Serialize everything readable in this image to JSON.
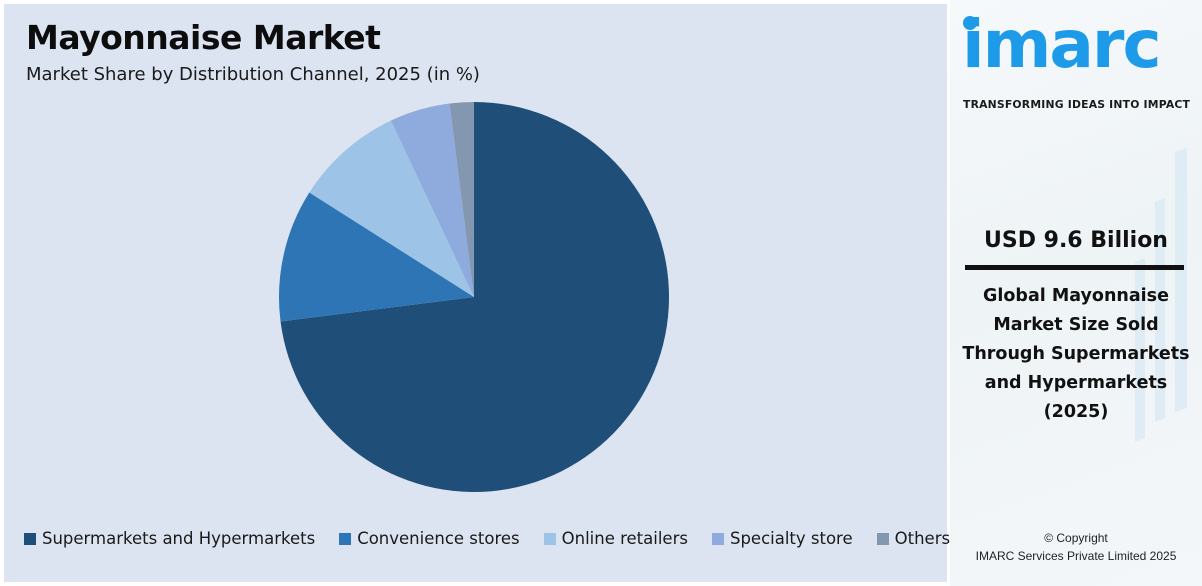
{
  "header": {
    "title": "Mayonnaise Market",
    "subtitle": "Market Share by Distribution Channel, 2025 (in %)"
  },
  "chart_data": {
    "type": "pie",
    "title": "Mayonnaise Market",
    "subtitle": "Market Share by Distribution Channel, 2025 (in %)",
    "categories": [
      "Supermarkets and Hypermarkets",
      "Convenience stores",
      "Online retailers",
      "Specialty store",
      "Others"
    ],
    "values": [
      73,
      11,
      9,
      5,
      2
    ],
    "colors": [
      "#1f4e79",
      "#2e75b6",
      "#9dc3e6",
      "#8faadc",
      "#8497b0"
    ],
    "start_angle": "12 o'clock, clockwise",
    "legend_position": "bottom"
  },
  "legend": {
    "items": [
      {
        "label": "Supermarkets and Hypermarkets",
        "color": "#1f4e79"
      },
      {
        "label": "Convenience stores",
        "color": "#2e75b6"
      },
      {
        "label": "Online retailers",
        "color": "#9dc3e6"
      },
      {
        "label": "Specialty store",
        "color": "#8faadc"
      },
      {
        "label": "Others",
        "color": "#8497b0"
      }
    ]
  },
  "sidebar": {
    "logo_text": "imarc",
    "tagline": "TRANSFORMING IDEAS INTO IMPACT",
    "brand_color": "#1e9be8",
    "value": "USD 9.6 Billion",
    "description_lines": [
      "Global Mayonnaise",
      "Market Size Sold",
      "Through Supermarkets",
      "and Hypermarkets",
      "(2025)"
    ],
    "copyright_line1": "© Copyright",
    "copyright_line2": "IMARC Services Private Limited 2025"
  }
}
